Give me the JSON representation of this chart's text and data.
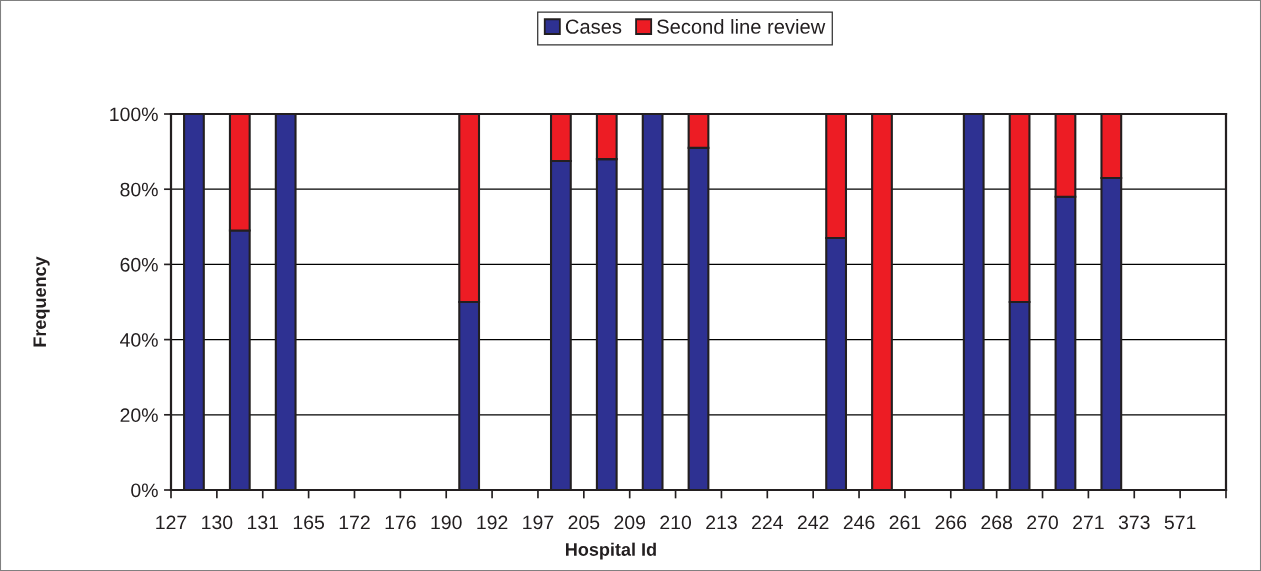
{
  "chart_data": {
    "type": "bar",
    "stacked": true,
    "xlabel": "Hospital Id",
    "ylabel": "Frequency",
    "categories": [
      "127",
      "130",
      "131",
      "165",
      "172",
      "176",
      "190",
      "192",
      "197",
      "205",
      "209",
      "210",
      "213",
      "224",
      "242",
      "246",
      "261",
      "266",
      "268",
      "270",
      "271",
      "373",
      "571"
    ],
    "series": [
      {
        "name": "Cases",
        "color": "#2e3192",
        "values": [
          100,
          69,
          100,
          null,
          null,
          null,
          50,
          null,
          87.5,
          88,
          100,
          91,
          null,
          null,
          67,
          null,
          null,
          100,
          50,
          78,
          83,
          null,
          null
        ]
      },
      {
        "name": "Second line review",
        "color": "#ed1c24",
        "values": [
          null,
          31,
          null,
          null,
          null,
          null,
          50,
          null,
          12.5,
          12,
          null,
          9,
          null,
          null,
          33,
          100,
          null,
          null,
          50,
          22,
          17,
          null,
          null
        ]
      }
    ],
    "ylim": [
      0,
      100
    ],
    "yticks": [
      {
        "value": 0,
        "label": "0%"
      },
      {
        "value": 20,
        "label": "20%"
      },
      {
        "value": 40,
        "label": "40%"
      },
      {
        "value": 60,
        "label": "60%"
      },
      {
        "value": 80,
        "label": "80%"
      },
      {
        "value": 100,
        "label": "100%"
      }
    ],
    "grid": "y",
    "legend": "top"
  }
}
